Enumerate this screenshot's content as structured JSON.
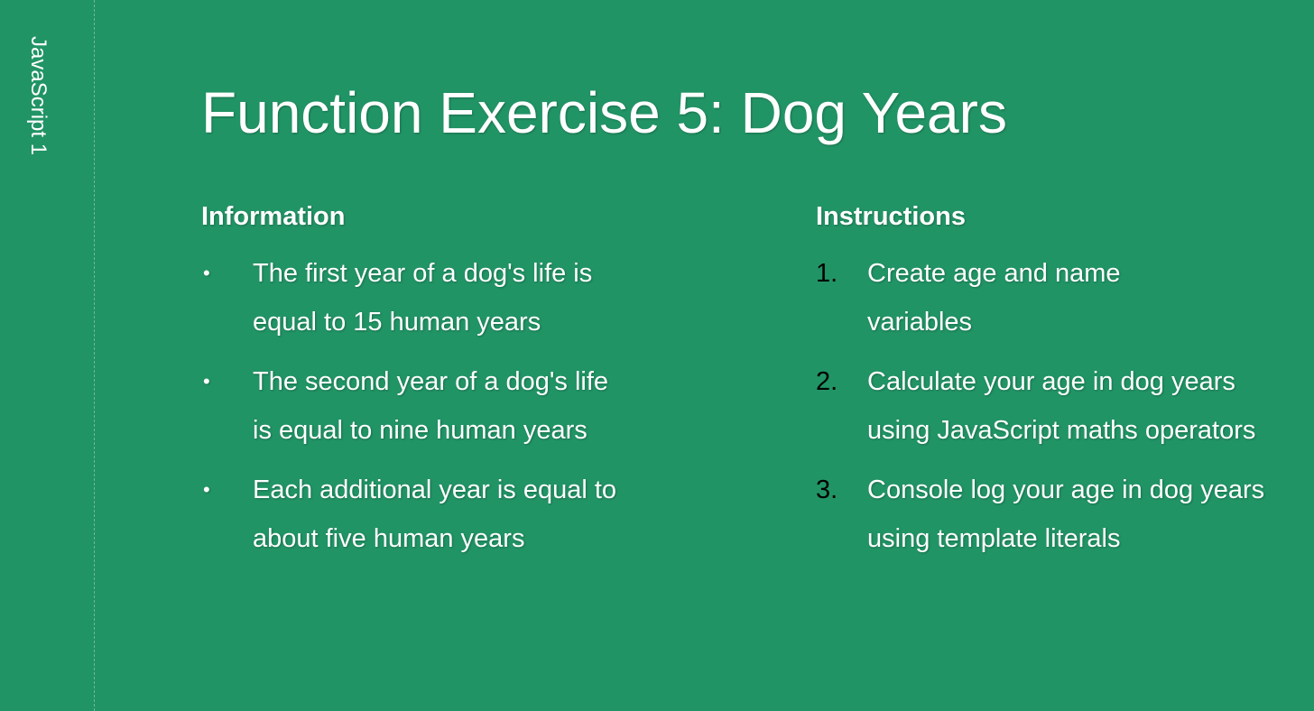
{
  "side_label": "JavaScript 1",
  "title": "Function Exercise 5: Dog Years",
  "information": {
    "heading": "Information",
    "bullet": "•",
    "items": [
      "The first year of a dog's life is equal to 15 human years",
      "The second year of a dog's life is equal to nine human years",
      "Each additional year is equal to about five human years"
    ]
  },
  "instructions": {
    "heading": "Instructions",
    "items": [
      {
        "number": "1.",
        "text": "Create age and name variables"
      },
      {
        "number": "2.",
        "text": "Calculate your age in dog years using JavaScript maths operators"
      },
      {
        "number": "3.",
        "text": "Console log your age in dog years using template literals"
      }
    ]
  }
}
